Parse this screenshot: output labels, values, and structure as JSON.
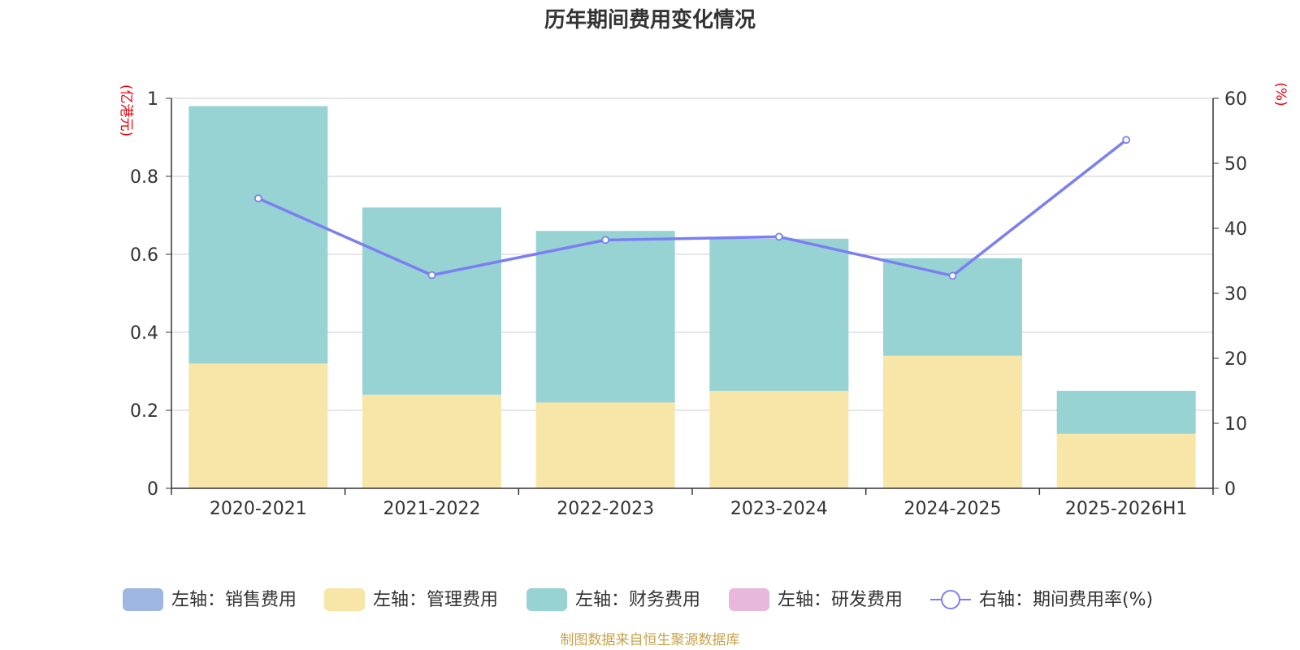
{
  "chart_data": {
    "type": "bar",
    "stacked": true,
    "title": "历年期间费用变化情况",
    "categories": [
      "2020-2021",
      "2021-2022",
      "2022-2023",
      "2023-2024",
      "2024-2025",
      "2025-2026H1"
    ],
    "series": [
      {
        "name": "左轴：销售费用",
        "axis": "left",
        "color": "#9db7e2",
        "values": [
          0,
          0,
          0,
          0,
          0,
          0
        ]
      },
      {
        "name": "左轴：管理费用",
        "axis": "left",
        "color": "#f7e6a8",
        "values": [
          0.32,
          0.24,
          0.22,
          0.25,
          0.34,
          0.14
        ]
      },
      {
        "name": "左轴：财务费用",
        "axis": "left",
        "color": "#98d3d4",
        "values": [
          0.66,
          0.48,
          0.44,
          0.39,
          0.25,
          0.11
        ]
      },
      {
        "name": "左轴：研发费用",
        "axis": "left",
        "color": "#e8b8da",
        "values": [
          0,
          0,
          0,
          0,
          0,
          0
        ]
      },
      {
        "name": "右轴：期间费用率(%)",
        "axis": "right",
        "type": "line",
        "color": "#7b7ff0",
        "values": [
          44.6,
          32.8,
          38.2,
          38.7,
          32.7,
          53.6
        ]
      }
    ],
    "yleft": {
      "label": "(亿港元)",
      "ylim": [
        0,
        1
      ],
      "ticks": [
        0,
        0.2,
        0.4,
        0.6,
        0.8,
        1
      ]
    },
    "yright": {
      "label": "(%)",
      "ylim": [
        0,
        60
      ],
      "ticks": [
        0,
        10,
        20,
        30,
        40,
        50,
        60
      ]
    },
    "legend_position": "bottom",
    "source": "制图数据来自恒生聚源数据库"
  }
}
